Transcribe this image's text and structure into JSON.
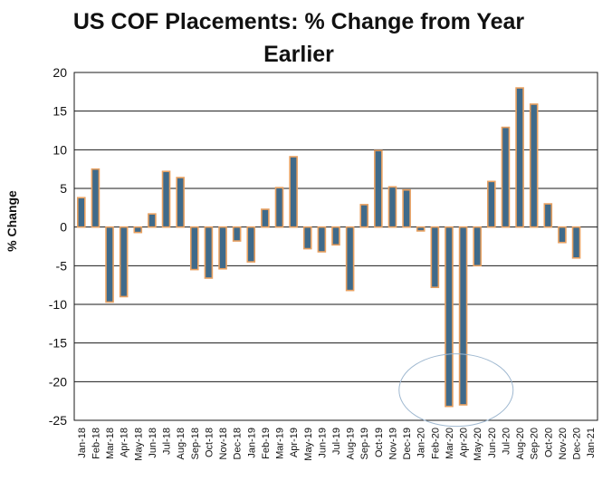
{
  "chart_data": {
    "type": "bar",
    "title_line1": "US COF Placements: % Change from Year",
    "title_line2": "Earlier",
    "xlabel": "",
    "ylabel": "% Change",
    "ylim": [
      -25,
      20
    ],
    "yticks": [
      20,
      15,
      10,
      5,
      0,
      -5,
      -10,
      -15,
      -20,
      -25
    ],
    "grid": true,
    "legend": "none",
    "categories": [
      "Jan-18",
      "Feb-18",
      "Mar-18",
      "Apr-18",
      "May-18",
      "Jun-18",
      "Jul-18",
      "Aug-18",
      "Sep-18",
      "Oct-18",
      "Nov-18",
      "Dec-18",
      "Jan-19",
      "Feb-19",
      "Mar-19",
      "Apr-19",
      "May-19",
      "Jun-19",
      "Jul-19",
      "Aug-19",
      "Sep-19",
      "Oct-19",
      "Nov-19",
      "Dec-19",
      "Jan-20",
      "Feb-20",
      "Mar-20",
      "Apr-20",
      "May-20",
      "Jun-20",
      "Jul-20",
      "Aug-20",
      "Sep-20",
      "Oct-20",
      "Nov-20",
      "Dec-20",
      "Jan-21"
    ],
    "values": [
      3.8,
      7.5,
      -9.7,
      -9.0,
      -0.7,
      1.7,
      7.2,
      6.4,
      -5.5,
      -6.6,
      -5.4,
      -1.8,
      -4.5,
      2.3,
      5.1,
      9.1,
      -2.8,
      -3.2,
      -2.3,
      -8.2,
      2.9,
      9.9,
      5.2,
      4.8,
      -0.5,
      -7.8,
      -23.2,
      -23.0,
      -5.0,
      5.9,
      12.9,
      18.0,
      15.9,
      3.0,
      -2.0,
      -4.0,
      null
    ],
    "colors": {
      "bar_fill": "#3f6a8a",
      "bar_edge": "#e8a060",
      "grid": "#1a1a1a",
      "annotation": "#9fb8d0"
    },
    "annotation": {
      "type": "ellipse-highlight",
      "categories": [
        "Mar-20",
        "Apr-20"
      ]
    }
  }
}
